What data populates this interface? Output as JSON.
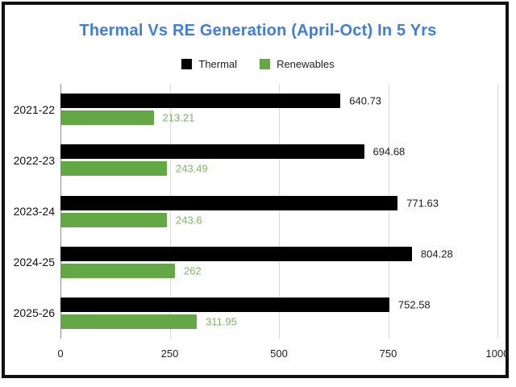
{
  "colors": {
    "title": "#3f7de0",
    "frame": "#101010",
    "gridline": "#dadada",
    "axis_line": "#8f8f8f",
    "tick_text": "#1f1f1f"
  },
  "chart_data": {
    "type": "bar",
    "orientation": "horizontal",
    "title": "Thermal Vs RE Generation (April-Oct) In 5 Yrs",
    "categories": [
      "2021-22",
      "2022-23",
      "2023-24",
      "2024-25",
      "2025-26"
    ],
    "series": [
      {
        "name": "Thermal",
        "color": "#000000",
        "label_color": "#1d1d1d",
        "values": [
          640.73,
          694.68,
          771.63,
          804.28,
          752.58
        ],
        "labels": [
          "640.73",
          "694.68",
          "771.63",
          "804.28",
          "752.58"
        ]
      },
      {
        "name": "Renewables",
        "color": "#63a845",
        "label_color": "#7fb566",
        "values": [
          213.21,
          243.49,
          243.6,
          262,
          311.95
        ],
        "labels": [
          "213.21",
          "243.49",
          "243.6",
          "262",
          "311.95"
        ]
      }
    ],
    "xlim": [
      0,
      1000
    ],
    "xticks": [
      0,
      250,
      500,
      750,
      1000
    ],
    "xtick_labels": [
      "0",
      "250",
      "500",
      "750",
      "1000"
    ],
    "grid": true,
    "legend_position": "top"
  }
}
